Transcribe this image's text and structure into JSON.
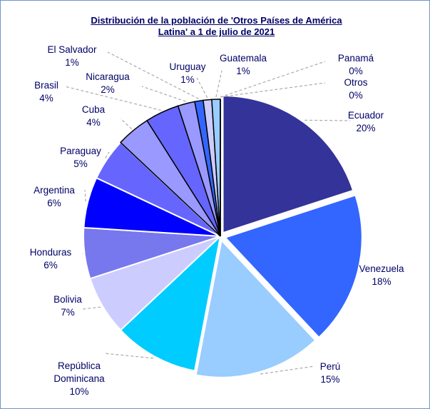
{
  "chart_data": {
    "type": "pie",
    "title": "Distribución de la población de 'Otros Países de América Latina' a 1 de julio de 2021",
    "categories": [
      "Ecuador",
      "Venezuela",
      "Perú",
      "República Dominicana",
      "Bolivia",
      "Honduras",
      "Argentina",
      "Paraguay",
      "Cuba",
      "Brasil",
      "Nicaragua",
      "El Salvador",
      "Uruguay",
      "Guatemala",
      "Panamá",
      "Otros"
    ],
    "values": [
      20,
      18,
      15,
      10,
      7,
      6,
      6,
      5,
      4,
      4,
      2,
      1,
      1,
      1,
      0,
      0
    ],
    "value_labels": [
      "20%",
      "18%",
      "15%",
      "10%",
      "7%",
      "6%",
      "6%",
      "5%",
      "4%",
      "4%",
      "2%",
      "1%",
      "1%",
      "1%",
      "0%",
      "0%"
    ],
    "colors": [
      "#333399",
      "#3366ff",
      "#99ccff",
      "#00ccff",
      "#ccccff",
      "#7777ee",
      "#0000ff",
      "#6666ff",
      "#9999ff",
      "#6666ff",
      "#9999ff",
      "#3366ff",
      "#ccccff",
      "#99ccff",
      "#333399",
      "#3366ff"
    ]
  }
}
